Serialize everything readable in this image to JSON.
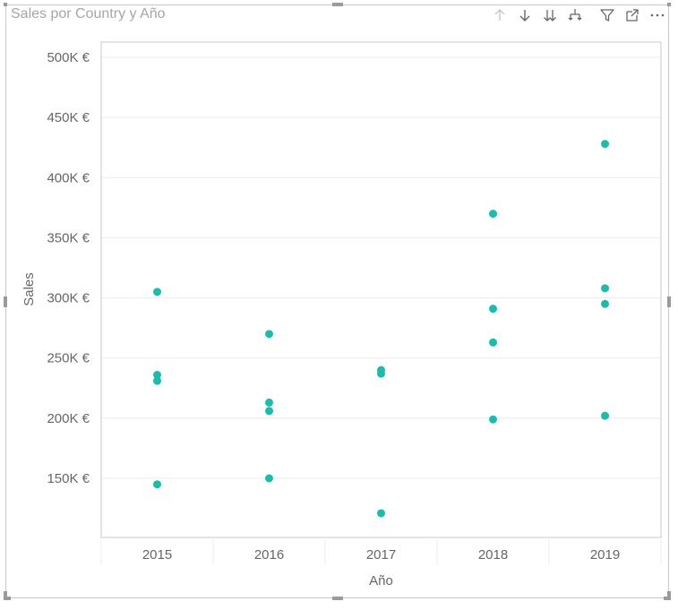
{
  "visual": {
    "title": "Sales por Country y Año"
  },
  "toolbar": {
    "icons": [
      "drill-up-icon",
      "drill-down-icon",
      "expand-next-level-icon",
      "expand-hierarchy-icon",
      "filter-icon",
      "focus-mode-icon",
      "more-options-icon"
    ]
  },
  "colors": {
    "point": "#1ABCAC",
    "axis_text": "#666666",
    "gridline": "#ececec",
    "title": "#a6a6a6",
    "plot_border": "#c8c8c8"
  },
  "chart_data": {
    "type": "scatter",
    "title": "Sales por Country y Año",
    "xlabel": "Año",
    "ylabel": "Sales",
    "categories": [
      "2015",
      "2016",
      "2017",
      "2018",
      "2019"
    ],
    "y_ticks": [
      150000,
      200000,
      250000,
      300000,
      350000,
      400000,
      450000,
      500000
    ],
    "y_tick_labels": [
      "150K €",
      "200K €",
      "250K €",
      "300K €",
      "350K €",
      "400K €",
      "450K €",
      "500K €"
    ],
    "ylim": [
      100000,
      500000
    ],
    "grid": true,
    "points": [
      {
        "x": "2015",
        "y": 305000
      },
      {
        "x": "2015",
        "y": 236000
      },
      {
        "x": "2015",
        "y": 231000
      },
      {
        "x": "2015",
        "y": 145000
      },
      {
        "x": "2016",
        "y": 270000
      },
      {
        "x": "2016",
        "y": 213000
      },
      {
        "x": "2016",
        "y": 206000
      },
      {
        "x": "2016",
        "y": 150000
      },
      {
        "x": "2017",
        "y": 240000
      },
      {
        "x": "2017",
        "y": 237000
      },
      {
        "x": "2017",
        "y": 121000
      },
      {
        "x": "2018",
        "y": 370000
      },
      {
        "x": "2018",
        "y": 291000
      },
      {
        "x": "2018",
        "y": 263000
      },
      {
        "x": "2018",
        "y": 199000
      },
      {
        "x": "2019",
        "y": 428000
      },
      {
        "x": "2019",
        "y": 308000
      },
      {
        "x": "2019",
        "y": 295000
      },
      {
        "x": "2019",
        "y": 202000
      }
    ]
  }
}
